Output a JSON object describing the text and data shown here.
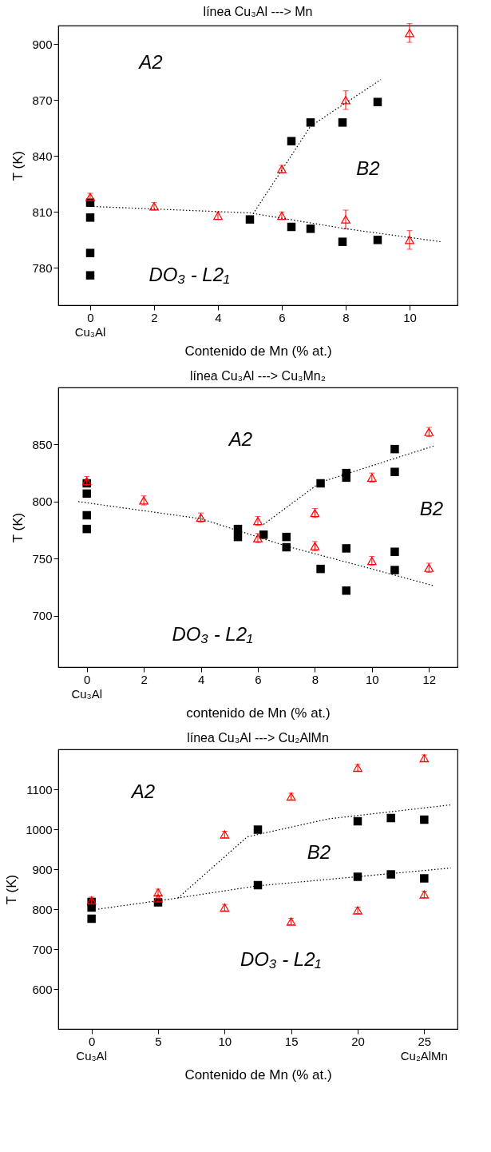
{
  "chart_data": [
    {
      "type": "scatter",
      "title": "línea Cu₃Al ---> Mn",
      "xlabel": "Contenido de Mn (% at.)",
      "ylabel": "T (K)",
      "grid": false,
      "xlim": [
        -1,
        11.5
      ],
      "xticks": [
        0,
        2,
        4,
        6,
        8,
        10
      ],
      "ylim": [
        760,
        910
      ],
      "yticks": [
        780,
        810,
        840,
        870,
        900
      ],
      "annotations": [
        "A2",
        "B2",
        "DO₃ - L2₁",
        "Cu₃Al"
      ],
      "series": [
        {
          "marker": "square",
          "color": "#000000",
          "x": [
            0,
            0,
            0,
            0,
            5,
            6.3,
            6.3,
            6.9,
            6.9,
            7.9,
            7.9,
            9,
            9
          ],
          "values": [
            815,
            807,
            788,
            776,
            806,
            848,
            802,
            858,
            801,
            858,
            794,
            869,
            795
          ]
        },
        {
          "marker": "triangle",
          "color": "#ff0000",
          "x": [
            0,
            2,
            4,
            6,
            6,
            8,
            8,
            10,
            10
          ],
          "values": [
            818,
            813,
            808,
            833,
            808,
            870,
            806,
            906,
            795
          ],
          "errors": [
            2,
            2,
            2,
            2,
            2,
            5,
            5,
            5,
            5
          ]
        },
        {
          "type": "line",
          "line_style": "dotted",
          "color": "#000000",
          "x": [
            0,
            5,
            8,
            11
          ],
          "values": [
            813,
            809.5,
            801,
            794
          ]
        },
        {
          "type": "line",
          "line_style": "dotted",
          "color": "#000000",
          "x": [
            5.1,
            6.9,
            9.1
          ],
          "values": [
            809,
            856,
            881
          ]
        }
      ]
    },
    {
      "type": "scatter",
      "title": "línea Cu₃Al ---> Cu₃Mn₂",
      "xlabel": "contenido de Mn (% at.)",
      "ylabel": "T (K)",
      "grid": false,
      "xlim": [
        -1,
        13
      ],
      "xticks": [
        0,
        2,
        4,
        6,
        8,
        10,
        12
      ],
      "ylim": [
        655,
        900
      ],
      "yticks": [
        700,
        750,
        800,
        850
      ],
      "annotations": [
        "A2",
        "B2",
        "DO₃ - L2₁",
        "Cu₃Al"
      ],
      "series": [
        {
          "marker": "square",
          "color": "#000000",
          "x": [
            0,
            0,
            0,
            0,
            5.3,
            5.3,
            6.2,
            7,
            7,
            8.2,
            8.2,
            9.1,
            9.1,
            9.1,
            9.1,
            10.8,
            10.8,
            10.8,
            10.8
          ],
          "values": [
            816,
            807,
            788,
            776,
            776,
            769,
            771,
            769,
            760,
            816,
            741,
            825,
            821,
            759,
            722,
            846,
            826,
            756,
            740
          ]
        },
        {
          "marker": "triangle",
          "color": "#ff0000",
          "x": [
            0,
            2,
            4,
            6,
            6,
            8,
            8,
            10,
            10,
            12,
            12
          ],
          "values": [
            818,
            801,
            786,
            783,
            768,
            790,
            761,
            821,
            748,
            861,
            742
          ],
          "errors": [
            4,
            4,
            4,
            4,
            4,
            4,
            4,
            4,
            4,
            4,
            4
          ]
        },
        {
          "type": "line",
          "line_style": "dotted",
          "color": "#000000",
          "x": [
            -0.3,
            4,
            7,
            10,
            12.2
          ],
          "values": [
            800,
            785,
            761,
            741,
            726
          ]
        },
        {
          "type": "line",
          "line_style": "dotted",
          "color": "#000000",
          "x": [
            6.2,
            8.2,
            12.2
          ],
          "values": [
            780,
            817,
            849
          ]
        }
      ]
    },
    {
      "type": "scatter",
      "title": "línea Cu₃Al ---> Cu₂AlMn",
      "xlabel": "Contenido de Mn (% at.)",
      "ylabel": "T (K)",
      "grid": false,
      "xlim": [
        -2.5,
        27.5
      ],
      "xticks": [
        0,
        5,
        10,
        15,
        20,
        25
      ],
      "ylim": [
        500,
        1200
      ],
      "yticks": [
        600,
        700,
        800,
        900,
        1000,
        1100
      ],
      "annotations": [
        "A2",
        "B2",
        "DO₃ - L2₁",
        "Cu₃Al",
        "Cu₂AlMn"
      ],
      "series": [
        {
          "marker": "square",
          "color": "#000000",
          "x": [
            0,
            0,
            0,
            5,
            12.5,
            12.5,
            20,
            20,
            22.5,
            22.5,
            25,
            25
          ],
          "values": [
            818,
            804,
            776,
            817,
            999,
            860,
            1020,
            881,
            1028,
            887,
            1024,
            877
          ]
        },
        {
          "marker": "triangle",
          "color": "#ff0000",
          "x": [
            0,
            5,
            5,
            10,
            10,
            15,
            15,
            20,
            20,
            25,
            25
          ],
          "values": [
            822,
            842,
            827,
            987,
            804,
            1082,
            769,
            1154,
            797,
            1178,
            837
          ],
          "errors": [
            8,
            8,
            8,
            8,
            8,
            8,
            8,
            8,
            8,
            8,
            8
          ]
        },
        {
          "type": "line",
          "line_style": "dotted",
          "color": "#000000",
          "x": [
            6.5,
            11.7,
            17.8,
            27
          ],
          "values": [
            828,
            981,
            1026,
            1061
          ]
        },
        {
          "type": "line",
          "line_style": "dotted",
          "color": "#000000",
          "x": [
            0.5,
            6.5,
            12.4,
            19.9,
            27
          ],
          "values": [
            800,
            828,
            858,
            881,
            903
          ]
        }
      ]
    }
  ]
}
